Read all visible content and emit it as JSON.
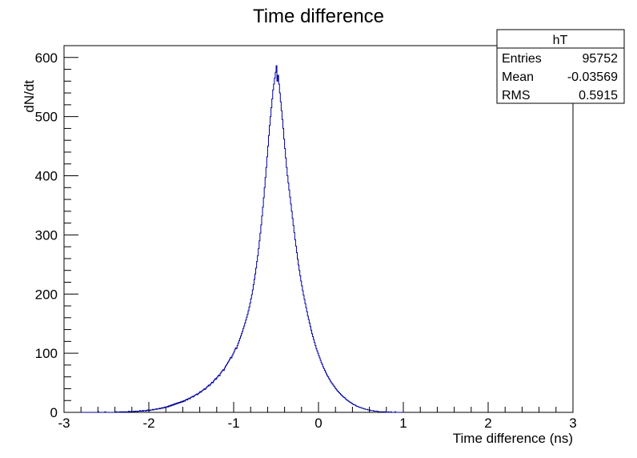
{
  "chart_data": {
    "type": "histogram",
    "title": "Time difference",
    "xlabel": "Time difference (ns)",
    "ylabel": "dN/dt",
    "xlim": [
      -3,
      3
    ],
    "ylim": [
      0,
      620
    ],
    "x_ticks": [
      "-3",
      "-2",
      "-1",
      "0",
      "1",
      "2",
      "3"
    ],
    "y_ticks": [
      "0",
      "100",
      "200",
      "300",
      "400",
      "500",
      "600"
    ],
    "line_color": "#000099",
    "grid": false,
    "stats_box": {
      "name": "hT",
      "rows": [
        {
          "label": "Entries",
          "value": "95752"
        },
        {
          "label": "Mean",
          "value": "-0.03569"
        },
        {
          "label": "RMS",
          "value": "0.5915"
        }
      ]
    },
    "bin_width": 0.01,
    "x_start": -2.8,
    "series": [
      {
        "values": [
          0,
          0,
          0,
          0,
          0,
          0,
          0,
          0,
          0,
          0,
          0,
          0,
          0,
          0,
          0,
          0,
          0,
          0,
          0,
          0,
          1,
          0,
          0,
          0,
          0,
          0,
          0,
          0,
          1,
          0,
          0,
          0,
          0,
          0,
          0,
          0,
          0,
          0,
          0,
          0,
          1,
          0,
          1,
          0,
          0,
          1,
          0,
          1,
          1,
          1,
          1,
          0,
          1,
          1,
          0,
          1,
          2,
          1,
          1,
          2,
          1,
          1,
          2,
          1,
          2,
          2,
          1,
          2,
          2,
          3,
          2,
          2,
          3,
          2,
          3,
          3,
          2,
          3,
          4,
          3,
          4,
          3,
          4,
          4,
          5,
          4,
          5,
          5,
          6,
          5,
          6,
          6,
          7,
          6,
          7,
          8,
          7,
          8,
          9,
          8,
          9,
          10,
          9,
          11,
          10,
          12,
          11,
          13,
          12,
          14,
          13,
          15,
          14,
          16,
          15,
          17,
          16,
          18,
          17,
          19,
          18,
          20,
          19,
          21,
          22,
          21,
          23,
          24,
          23,
          25,
          26,
          27,
          26,
          28,
          29,
          30,
          31,
          30,
          32,
          33,
          35,
          34,
          36,
          37,
          38,
          40,
          39,
          41,
          43,
          44,
          46,
          45,
          47,
          49,
          51,
          50,
          53,
          55,
          57,
          56,
          59,
          61,
          63,
          62,
          66,
          68,
          70,
          72,
          71,
          75,
          78,
          80,
          82,
          85,
          87,
          90,
          93,
          92,
          96,
          99,
          102,
          106,
          109,
          108,
          113,
          117,
          121,
          125,
          129,
          133,
          137,
          142,
          146,
          151,
          156,
          161,
          166,
          172,
          178,
          185,
          192,
          199,
          207,
          216,
          225,
          234,
          244,
          255,
          265,
          277,
          290,
          303,
          317,
          332,
          347,
          363,
          380,
          397,
          414,
          432,
          450,
          468,
          485,
          500,
          515,
          530,
          545,
          555,
          565,
          575,
          586,
          560,
          570,
          555,
          540,
          525,
          510,
          495,
          480,
          462,
          446,
          430,
          414,
          400,
          388,
          376,
          364,
          352,
          340,
          328,
          316,
          304,
          292,
          281,
          270,
          259,
          249,
          240,
          231,
          222,
          214,
          206,
          198,
          191,
          184,
          177,
          170,
          163,
          157,
          151,
          145,
          139,
          133,
          128,
          123,
          118,
          113,
          108,
          104,
          100,
          96,
          92,
          88,
          84,
          81,
          77,
          74,
          71,
          68,
          65,
          62,
          60,
          57,
          55,
          52,
          50,
          48,
          46,
          44,
          42,
          40,
          38,
          36,
          35,
          33,
          32,
          30,
          29,
          27,
          26,
          25,
          24,
          22,
          21,
          20,
          19,
          18,
          17,
          16,
          15,
          14,
          13,
          13,
          12,
          11,
          10,
          10,
          9,
          9,
          8,
          8,
          7,
          7,
          6,
          6,
          5,
          5,
          5,
          4,
          4,
          4,
          3,
          3,
          3,
          3,
          2,
          2,
          2,
          2,
          2,
          1,
          1,
          1,
          1,
          1,
          1,
          1,
          1,
          0,
          1,
          0,
          0,
          1,
          0,
          0,
          1,
          0,
          0,
          0,
          0,
          1,
          0,
          0,
          0,
          0,
          0,
          0,
          0,
          0,
          0
        ]
      }
    ]
  }
}
